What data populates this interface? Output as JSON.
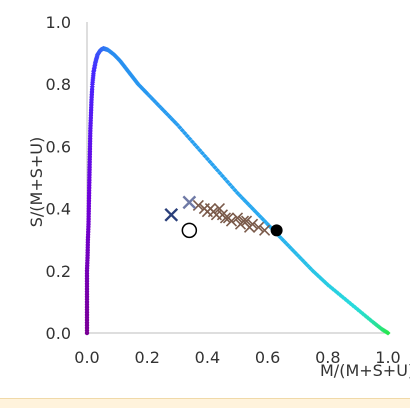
{
  "chart_data": {
    "type": "scatter",
    "xlabel": "M/(M+S+U)",
    "ylabel": "S/(M+S+U)",
    "xlim": [
      0,
      1
    ],
    "ylim": [
      0,
      1
    ],
    "x_ticks": [
      "0.0",
      "0.2",
      "0.4",
      "0.6",
      "0.8",
      "1.0"
    ],
    "y_ticks": [
      "0.0",
      "0.2",
      "0.4",
      "0.6",
      "0.8",
      "1.0"
    ],
    "grid": false,
    "series": [
      {
        "kind": "spectral-locus",
        "points": [
          {
            "x": 0.0,
            "y": 0.0
          },
          {
            "x": 0.0,
            "y": 0.05
          },
          {
            "x": 0.0,
            "y": 0.1
          },
          {
            "x": 0.0,
            "y": 0.15
          },
          {
            "x": 0.0,
            "y": 0.2
          },
          {
            "x": 0.002,
            "y": 0.25
          },
          {
            "x": 0.003,
            "y": 0.3
          },
          {
            "x": 0.005,
            "y": 0.35
          },
          {
            "x": 0.006,
            "y": 0.4
          },
          {
            "x": 0.007,
            "y": 0.45
          },
          {
            "x": 0.008,
            "y": 0.5
          },
          {
            "x": 0.009,
            "y": 0.55
          },
          {
            "x": 0.01,
            "y": 0.6
          },
          {
            "x": 0.011,
            "y": 0.65
          },
          {
            "x": 0.013,
            "y": 0.7
          },
          {
            "x": 0.015,
            "y": 0.75
          },
          {
            "x": 0.018,
            "y": 0.8
          },
          {
            "x": 0.022,
            "y": 0.84
          },
          {
            "x": 0.028,
            "y": 0.87
          },
          {
            "x": 0.035,
            "y": 0.895
          },
          {
            "x": 0.045,
            "y": 0.91
          },
          {
            "x": 0.055,
            "y": 0.915
          },
          {
            "x": 0.07,
            "y": 0.91
          },
          {
            "x": 0.09,
            "y": 0.895
          },
          {
            "x": 0.11,
            "y": 0.875
          },
          {
            "x": 0.13,
            "y": 0.85
          },
          {
            "x": 0.15,
            "y": 0.825
          },
          {
            "x": 0.17,
            "y": 0.8
          },
          {
            "x": 0.2,
            "y": 0.77
          },
          {
            "x": 0.25,
            "y": 0.72
          },
          {
            "x": 0.3,
            "y": 0.67
          },
          {
            "x": 0.35,
            "y": 0.615
          },
          {
            "x": 0.4,
            "y": 0.56
          },
          {
            "x": 0.45,
            "y": 0.505
          },
          {
            "x": 0.5,
            "y": 0.45
          },
          {
            "x": 0.55,
            "y": 0.4
          },
          {
            "x": 0.6,
            "y": 0.35
          },
          {
            "x": 0.65,
            "y": 0.3
          },
          {
            "x": 0.7,
            "y": 0.25
          },
          {
            "x": 0.75,
            "y": 0.2
          },
          {
            "x": 0.8,
            "y": 0.155
          },
          {
            "x": 0.85,
            "y": 0.115
          },
          {
            "x": 0.9,
            "y": 0.075
          },
          {
            "x": 0.95,
            "y": 0.035
          },
          {
            "x": 0.98,
            "y": 0.012
          },
          {
            "x": 1.0,
            "y": 0.0
          }
        ]
      },
      {
        "kind": "crosses",
        "color": "#7a5a4a",
        "points": [
          {
            "x": 0.37,
            "y": 0.41
          },
          {
            "x": 0.39,
            "y": 0.4
          },
          {
            "x": 0.41,
            "y": 0.4
          },
          {
            "x": 0.42,
            "y": 0.39
          },
          {
            "x": 0.43,
            "y": 0.38
          },
          {
            "x": 0.45,
            "y": 0.38
          },
          {
            "x": 0.47,
            "y": 0.37
          },
          {
            "x": 0.48,
            "y": 0.36
          },
          {
            "x": 0.5,
            "y": 0.37
          },
          {
            "x": 0.52,
            "y": 0.36
          },
          {
            "x": 0.53,
            "y": 0.36
          },
          {
            "x": 0.55,
            "y": 0.35
          },
          {
            "x": 0.57,
            "y": 0.34
          },
          {
            "x": 0.59,
            "y": 0.33
          },
          {
            "x": 0.44,
            "y": 0.4
          },
          {
            "x": 0.4,
            "y": 0.39
          },
          {
            "x": 0.46,
            "y": 0.37
          },
          {
            "x": 0.51,
            "y": 0.35
          },
          {
            "x": 0.54,
            "y": 0.34
          }
        ]
      },
      {
        "kind": "special-markers",
        "points": [
          {
            "x": 0.28,
            "y": 0.38,
            "marker": "x",
            "color": "#2a3f7a"
          },
          {
            "x": 0.34,
            "y": 0.42,
            "marker": "x",
            "color": "#6f7aa6"
          },
          {
            "x": 0.34,
            "y": 0.33,
            "marker": "open-circle",
            "color": "#000000"
          },
          {
            "x": 0.63,
            "y": 0.33,
            "marker": "filled-circle",
            "color": "#000000"
          }
        ]
      }
    ]
  }
}
